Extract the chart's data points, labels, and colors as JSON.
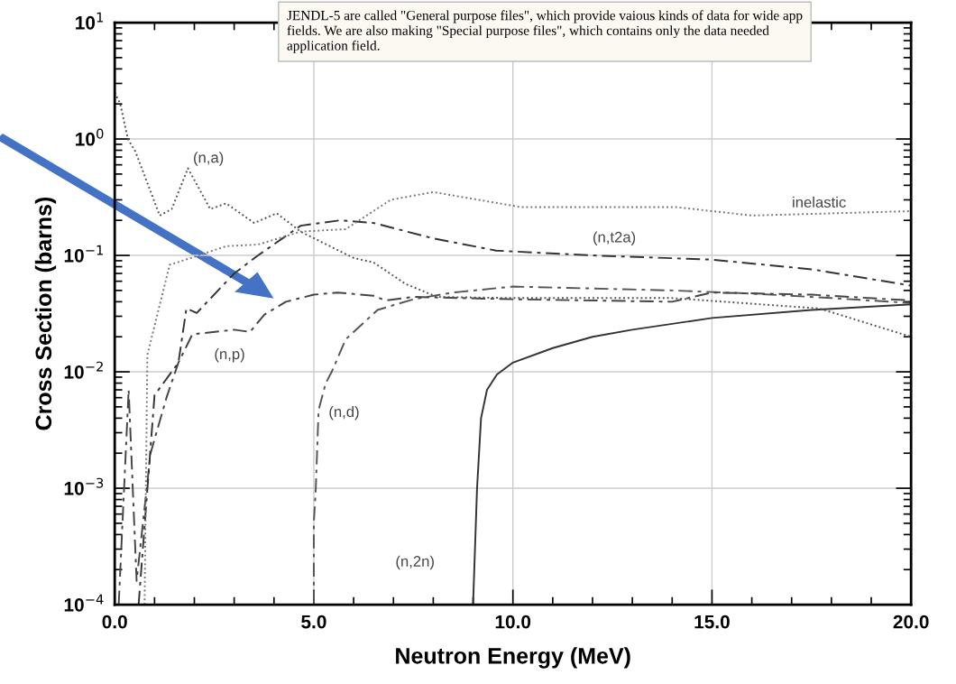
{
  "chart_data": {
    "type": "line",
    "xlabel": "Neutron Energy (MeV)",
    "ylabel": "Cross Section (barns)",
    "log": "y",
    "grid": true,
    "xlim": [
      0,
      20
    ],
    "xticks": [
      {
        "value": 0,
        "label": "0.0"
      },
      {
        "value": 5,
        "label": "5.0"
      },
      {
        "value": 10,
        "label": "10.0"
      },
      {
        "value": 15,
        "label": "15.0"
      },
      {
        "value": 20,
        "label": "20.0"
      }
    ],
    "ylim": [
      0.0001,
      10
    ],
    "yticks": [
      {
        "value": 0.0001,
        "label": "10$^{−4}$"
      },
      {
        "value": 0.001,
        "label": "10$^{−3}$"
      },
      {
        "value": 0.01,
        "label": "10$^{−2}$"
      },
      {
        "value": 0.1,
        "label": "10$^{−1}$"
      },
      {
        "value": 1,
        "label": "10$^{0}$"
      },
      {
        "value": 10,
        "label": "10$^{1}$"
      }
    ],
    "series": [
      {
        "name": "(n,2n)",
        "color": "#333333",
        "line_style": "solid",
        "x": [
          9.0,
          9.1,
          9.2,
          9.35,
          9.6,
          10,
          11,
          12,
          13,
          15,
          17.5,
          20
        ],
        "values": [
          0.0001,
          0.001,
          0.004,
          0.007,
          0.0095,
          0.012,
          0.016,
          0.02,
          0.023,
          0.029,
          0.034,
          0.038
        ]
      },
      {
        "name": "(n,d)",
        "color": "#555555",
        "line_style": "dashed",
        "x": [
          5.0,
          5.0,
          5.05,
          5.12,
          5.3,
          5.45,
          5.8,
          6.6,
          7.5,
          8.5,
          10,
          12,
          14,
          16,
          18,
          20
        ],
        "values": [
          0.0001,
          0.0005,
          0.001,
          0.0047,
          0.008,
          0.01,
          0.019,
          0.034,
          0.042,
          0.048,
          0.054,
          0.052,
          0.05,
          0.047,
          0.043,
          0.039
        ]
      },
      {
        "name": "(n,p)",
        "color": "#444444",
        "line_style": "dashed",
        "x": [
          0.1,
          0.35,
          0.55,
          0.9,
          1.3,
          1.6,
          1.95,
          3.0,
          3.4,
          3.76,
          4.3,
          5.0,
          5.6,
          6.5,
          6.8,
          7.5,
          10,
          14.0,
          15,
          17.5,
          20
        ],
        "values": [
          0.0001,
          0.007,
          0.00016,
          0.002,
          0.006,
          0.012,
          0.021,
          0.023,
          0.022,
          0.031,
          0.04,
          0.046,
          0.048,
          0.045,
          0.041,
          0.044,
          0.042,
          0.04,
          0.048,
          0.046,
          0.041
        ]
      },
      {
        "name": "(n,t2a)",
        "color": "#333333",
        "line_style": "dashed",
        "x": [
          0.6,
          1.0,
          1.6,
          1.8,
          2.06,
          3.0,
          3.6,
          4.67,
          5.66,
          6.5,
          8,
          9.58,
          12,
          15,
          17.5,
          20
        ],
        "values": [
          0.0001,
          0.0063,
          0.012,
          0.035,
          0.032,
          0.07,
          0.1,
          0.18,
          0.2,
          0.19,
          0.14,
          0.11,
          0.1,
          0.092,
          0.076,
          0.055
        ]
      },
      {
        "name": "(n,a)",
        "color": "#555555",
        "line_style": "dotted",
        "x": [
          0.0,
          0.14,
          0.33,
          0.52,
          1.13,
          1.43,
          1.84,
          2.4,
          2.8,
          3.5,
          4.07,
          4.67,
          6.0,
          6.5,
          7.3,
          8.1,
          10,
          14,
          17.7,
          20
        ],
        "values": [
          2.5,
          2.0,
          1.0,
          0.78,
          0.22,
          0.25,
          0.56,
          0.25,
          0.28,
          0.19,
          0.23,
          0.16,
          0.095,
          0.087,
          0.057,
          0.044,
          0.043,
          0.043,
          0.035,
          0.02
        ]
      },
      {
        "name": "inelastic",
        "color": "#777777",
        "line_style": "dotted",
        "x": [
          0.75,
          0.82,
          1.38,
          1.7,
          2.8,
          3.6,
          4.67,
          5.8,
          6.93,
          8.0,
          10.2,
          14.1,
          16.0,
          20
        ],
        "values": [
          0.0001,
          0.014,
          0.083,
          0.09,
          0.12,
          0.124,
          0.16,
          0.168,
          0.3,
          0.35,
          0.26,
          0.26,
          0.22,
          0.24
        ]
      }
    ],
    "annotations": [
      "JENDL-5 are called \"General purpose files\", which provide vaious kinds of data for wide app\nfields. We are also making \"Special purpose files\", which contains only the data needed\napplication field."
    ]
  }
}
